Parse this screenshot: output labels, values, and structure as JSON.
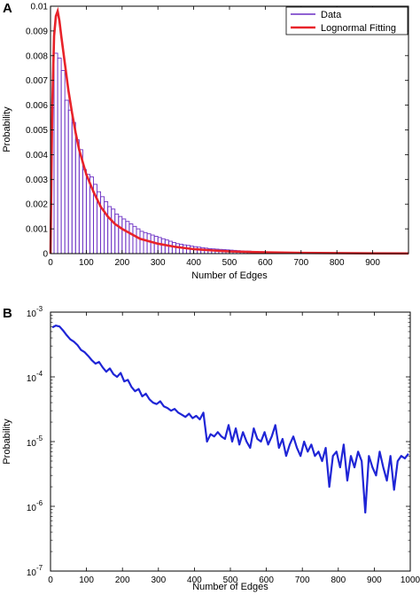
{
  "chart_data": [
    {
      "panel_label": "A",
      "type": "bar",
      "xlabel": "Number of Edges",
      "ylabel": "Probability",
      "xlim": [
        0,
        1000
      ],
      "ylim": [
        0,
        0.01
      ],
      "bin_width": 10,
      "bin_start": 0,
      "x_ticks": [
        0,
        100,
        200,
        300,
        400,
        500,
        600,
        700,
        800,
        900
      ],
      "y_ticks": [
        0,
        0.001,
        0.002,
        0.003,
        0.004,
        0.005,
        0.006,
        0.007,
        0.008,
        0.009,
        0.01
      ],
      "x_tick_labels": [
        "0",
        "100",
        "200",
        "300",
        "400",
        "500",
        "600",
        "700",
        "800",
        "900"
      ],
      "y_tick_labels": [
        "0",
        "0.001",
        "0.002",
        "0.003",
        "0.004",
        "0.005",
        "0.006",
        "0.007",
        "0.008",
        "0.009",
        "0.01"
      ],
      "legend": {
        "placement": "top-right",
        "entries": [
          "Data",
          "Lognormal Fitting"
        ]
      },
      "colors": {
        "bars": "#6b2fc4",
        "fit": "#e8232a",
        "axes": "#000000"
      },
      "series": [
        {
          "name": "Data",
          "type": "bar",
          "values": [
            0.0059,
            0.0081,
            0.0079,
            0.0074,
            0.0062,
            0.0058,
            0.0053,
            0.0046,
            0.0042,
            0.0034,
            0.0032,
            0.0031,
            0.0028,
            0.0025,
            0.0023,
            0.0021,
            0.0019,
            0.0018,
            0.0016,
            0.0015,
            0.0014,
            0.0013,
            0.0012,
            0.0011,
            0.001,
            0.0009,
            0.00085,
            0.0008,
            0.00075,
            0.0007,
            0.00065,
            0.0006,
            0.00055,
            0.0005,
            0.00045,
            0.0004,
            0.00038,
            0.00035,
            0.00033,
            0.0003,
            0.00028,
            0.00026,
            0.00024,
            0.00022,
            0.0002,
            0.00019,
            0.00018,
            0.00017,
            0.00016,
            0.00015,
            0.00014,
            0.00013,
            0.00012,
            0.00011,
            0.0001,
            0.0001,
            9e-05,
            9e-05,
            8e-05,
            8e-05,
            7e-05,
            7e-05,
            6e-05,
            6e-05,
            6e-05,
            5e-05,
            5e-05,
            5e-05,
            4e-05,
            4e-05,
            4e-05,
            4e-05,
            3e-05,
            3e-05,
            3e-05,
            3e-05,
            3e-05,
            2e-05,
            2e-05,
            2e-05,
            2e-05,
            2e-05,
            2e-05,
            2e-05,
            2e-05,
            2e-05,
            1e-05,
            1e-05,
            1e-05,
            1e-05,
            1e-05,
            1e-05,
            1e-05,
            1e-05,
            1e-05,
            1e-05,
            1e-05,
            1e-05,
            1e-05,
            1e-05
          ]
        },
        {
          "name": "Lognormal Fitting",
          "type": "line",
          "x": [
            0,
            5,
            10,
            15,
            20,
            25,
            30,
            40,
            50,
            60,
            70,
            80,
            100,
            120,
            140,
            160,
            180,
            200,
            250,
            300,
            350,
            400,
            450,
            500,
            600,
            700,
            800,
            900,
            1000
          ],
          "values": [
            0,
            0.006,
            0.0088,
            0.0096,
            0.0098,
            0.0094,
            0.0088,
            0.0077,
            0.0066,
            0.0057,
            0.0049,
            0.0042,
            0.0032,
            0.0025,
            0.0019,
            0.0015,
            0.0012,
            0.001,
            0.0006,
            0.0004,
            0.00027,
            0.00018,
            0.00013,
            9e-05,
            5e-05,
            3e-05,
            2e-05,
            1e-05,
            6e-06
          ]
        }
      ]
    },
    {
      "panel_label": "B",
      "type": "line",
      "xlabel": "Number of Edges",
      "ylabel": "Probability",
      "xlim": [
        0,
        1000
      ],
      "ylim": [
        1e-07,
        0.001
      ],
      "y_scale": "log",
      "x_ticks": [
        0,
        100,
        200,
        300,
        400,
        500,
        600,
        700,
        800,
        900,
        1000
      ],
      "x_tick_labels": [
        "0",
        "100",
        "200",
        "300",
        "400",
        "500",
        "600",
        "700",
        "800",
        "900",
        "1000"
      ],
      "y_ticks": [
        1e-07,
        1e-06,
        1e-05,
        0.0001,
        0.001
      ],
      "y_tick_labels": [
        {
          "base": "10",
          "exp": "-7"
        },
        {
          "base": "10",
          "exp": "-6"
        },
        {
          "base": "10",
          "exp": "-5"
        },
        {
          "base": "10",
          "exp": "-4"
        },
        {
          "base": "10",
          "exp": "-3"
        }
      ],
      "colors": {
        "line": "#1f25d6",
        "axes": "#000000"
      },
      "series": [
        {
          "x": [
            5,
            15,
            25,
            35,
            45,
            55,
            65,
            75,
            85,
            95,
            105,
            115,
            125,
            135,
            145,
            155,
            165,
            175,
            185,
            195,
            205,
            215,
            225,
            235,
            245,
            255,
            265,
            275,
            285,
            295,
            305,
            315,
            325,
            335,
            345,
            355,
            365,
            375,
            385,
            395,
            405,
            415,
            425,
            435,
            445,
            455,
            465,
            475,
            485,
            495,
            505,
            515,
            525,
            535,
            545,
            555,
            565,
            575,
            585,
            595,
            605,
            615,
            625,
            635,
            645,
            655,
            665,
            675,
            685,
            695,
            705,
            715,
            725,
            735,
            745,
            755,
            765,
            775,
            785,
            795,
            805,
            815,
            825,
            835,
            845,
            855,
            865,
            875,
            885,
            895,
            905,
            915,
            925,
            935,
            945,
            955,
            965,
            975,
            985,
            995
          ],
          "values": [
            0.00058,
            0.00062,
            0.0006,
            0.00052,
            0.00044,
            0.00038,
            0.00035,
            0.00031,
            0.00026,
            0.00024,
            0.00021,
            0.00018,
            0.00016,
            0.00017,
            0.00014,
            0.00012,
            0.000135,
            0.00011,
            0.0001,
            0.000115,
            8.5e-05,
            9e-05,
            7e-05,
            6e-05,
            6.5e-05,
            5e-05,
            5.5e-05,
            4.5e-05,
            4e-05,
            3.8e-05,
            4.2e-05,
            3.5e-05,
            3.3e-05,
            3e-05,
            3.2e-05,
            2.8e-05,
            2.6e-05,
            2.4e-05,
            2.7e-05,
            2.3e-05,
            2.5e-05,
            2.2e-05,
            2.8e-05,
            1e-05,
            1.3e-05,
            1.2e-05,
            1.4e-05,
            1.2e-05,
            1.1e-05,
            1.8e-05,
            1e-05,
            1.6e-05,
            9e-06,
            1.4e-05,
            1e-05,
            8e-06,
            1.6e-05,
            1.1e-05,
            1e-05,
            1.4e-05,
            9e-06,
            1.2e-05,
            1.8e-05,
            8e-06,
            1.1e-05,
            6e-06,
            9e-06,
            1.2e-05,
            8e-06,
            6e-06,
            1e-05,
            7e-06,
            9e-06,
            6e-06,
            7e-06,
            5e-06,
            8e-06,
            2e-06,
            6e-06,
            7e-06,
            4e-06,
            9e-06,
            2.5e-06,
            6e-06,
            4e-06,
            7e-06,
            5e-06,
            8e-07,
            6e-06,
            4e-06,
            3e-06,
            7e-06,
            4e-06,
            2.5e-06,
            6e-06,
            1.8e-06,
            5e-06,
            6e-06,
            5.5e-06,
            6.5e-06
          ]
        }
      ]
    }
  ]
}
